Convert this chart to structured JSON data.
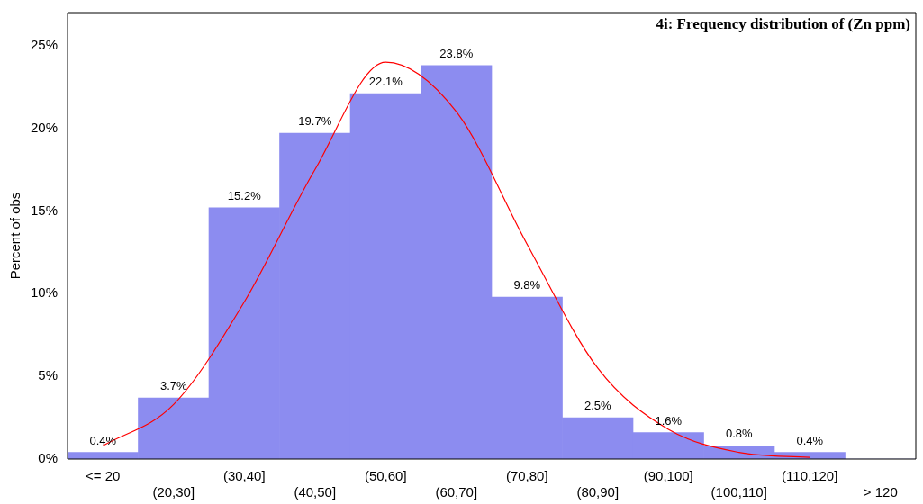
{
  "chart_data": {
    "type": "bar",
    "title": "4i: Frequency distribution of (Zn ppm)",
    "ylabel": "Percent of obs",
    "categories": [
      "<= 20",
      "(20,30]",
      "(30,40]",
      "(40,50]",
      "(50,60]",
      "(60,70]",
      "(70,80]",
      "(80,90]",
      "(90,100]",
      "(100,110]",
      "(110,120]",
      "> 120"
    ],
    "series": [
      {
        "type": "bar",
        "color": "#8c8cf0",
        "values": [
          0.4,
          3.7,
          15.2,
          19.7,
          22.1,
          23.8,
          9.8,
          2.5,
          1.6,
          0.8,
          0.4,
          0
        ],
        "value_labels": [
          "0.4%",
          "3.7%",
          "15.2%",
          "19.7%",
          "22.1%",
          "23.8%",
          "9.8%",
          "2.5%",
          "1.6%",
          "0.8%",
          "0.4%",
          null
        ]
      },
      {
        "type": "line",
        "color": "#ff0000",
        "values": [
          0.8,
          3.3,
          9.5,
          17.5,
          24,
          21,
          13,
          5.5,
          1.8,
          0.4,
          0.1,
          null
        ]
      }
    ],
    "ylim": [
      0,
      27
    ],
    "yticks": [
      {
        "value": 0,
        "label": "0%"
      },
      {
        "value": 5,
        "label": "5%"
      },
      {
        "value": 10,
        "label": "10%"
      },
      {
        "value": 15,
        "label": "15%"
      },
      {
        "value": 20,
        "label": "20%"
      },
      {
        "value": 25,
        "label": "25%"
      }
    ],
    "grid": false,
    "legend": false,
    "marker": "none"
  }
}
